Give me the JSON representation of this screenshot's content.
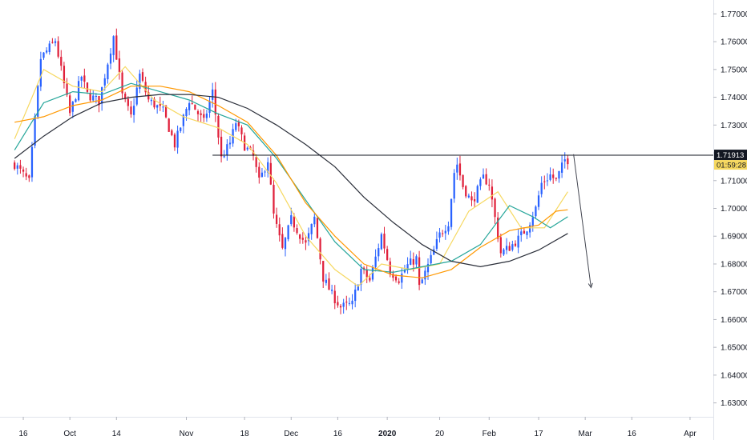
{
  "chart_data": {
    "type": "candlestick",
    "instrument_note": "",
    "y_axis": {
      "ylim": [
        1.625,
        1.775
      ],
      "tick_labels": [
        "1.77000",
        "1.76000",
        "1.75000",
        "1.74000",
        "1.73000",
        "1.72000",
        "1.71000",
        "1.70000",
        "1.69000",
        "1.68000",
        "1.67000",
        "1.66000",
        "1.65000",
        "1.64000",
        "1.63000"
      ],
      "tick_values": [
        1.77,
        1.76,
        1.75,
        1.74,
        1.73,
        1.72,
        1.71,
        1.7,
        1.69,
        1.68,
        1.67,
        1.66,
        1.65,
        1.64,
        1.63
      ]
    },
    "x_axis": {
      "tick_labels": [
        "16",
        "Oct",
        "14",
        "Nov",
        "18",
        "Dec",
        "16",
        "2020",
        "20",
        "Feb",
        "17",
        "Mar",
        "16",
        "Apr"
      ],
      "tick_bold": [
        false,
        false,
        false,
        false,
        false,
        false,
        false,
        true,
        false,
        false,
        false,
        false,
        false,
        false
      ],
      "tick_index": [
        3,
        19,
        35,
        59,
        79,
        95,
        111,
        128,
        146,
        163,
        180,
        196,
        212,
        232
      ],
      "index_range": [
        -5,
        240
      ]
    },
    "price_path": {
      "index": [
        0,
        5,
        9,
        14,
        19,
        23,
        25,
        29,
        34,
        37,
        40,
        43,
        46,
        51,
        55,
        60,
        65,
        68,
        71,
        74,
        76,
        79,
        82,
        84,
        87,
        89,
        92,
        95,
        100,
        103,
        106,
        109,
        112,
        116,
        119,
        122,
        126,
        129,
        132,
        135,
        138,
        139,
        143,
        146,
        149,
        151,
        152,
        154,
        157,
        161,
        163,
        167,
        170,
        173,
        176,
        179,
        181,
        184,
        186,
        189
      ],
      "close": [
        1.716,
        1.7095,
        1.754,
        1.7605,
        1.734,
        1.7475,
        1.741,
        1.7385,
        1.762,
        1.7405,
        1.733,
        1.748,
        1.739,
        1.735,
        1.723,
        1.739,
        1.731,
        1.742,
        1.718,
        1.7235,
        1.731,
        1.7225,
        1.7185,
        1.7095,
        1.7175,
        1.6975,
        1.685,
        1.696,
        1.687,
        1.6965,
        1.675,
        1.669,
        1.6645,
        1.6655,
        1.678,
        1.674,
        1.6905,
        1.6775,
        1.6745,
        1.6795,
        1.682,
        1.6715,
        1.682,
        1.6905,
        1.695,
        1.713,
        1.716,
        1.708,
        1.702,
        1.711,
        1.709,
        1.684,
        1.686,
        1.689,
        1.693,
        1.7,
        1.709,
        1.712,
        1.71,
        1.7175
      ]
    },
    "candles": {
      "count": 191,
      "up_color": "#2962ff",
      "down_color": "#e0213b"
    },
    "moving_averages": [
      {
        "color": "#f6d860",
        "points": [
          [
            0,
            1.725
          ],
          [
            10,
            1.75
          ],
          [
            20,
            1.744
          ],
          [
            30,
            1.742
          ],
          [
            38,
            1.751
          ],
          [
            48,
            1.739
          ],
          [
            58,
            1.733
          ],
          [
            70,
            1.729
          ],
          [
            80,
            1.723
          ],
          [
            90,
            1.709
          ],
          [
            100,
            1.69
          ],
          [
            110,
            1.678
          ],
          [
            118,
            1.672
          ],
          [
            126,
            1.68
          ],
          [
            136,
            1.678
          ],
          [
            146,
            1.68
          ],
          [
            156,
            1.699
          ],
          [
            166,
            1.706
          ],
          [
            174,
            1.693
          ],
          [
            182,
            1.693
          ],
          [
            190,
            1.706
          ]
        ]
      },
      {
        "color": "#26a69a",
        "points": [
          [
            0,
            1.721
          ],
          [
            10,
            1.738
          ],
          [
            20,
            1.742
          ],
          [
            30,
            1.741
          ],
          [
            40,
            1.745
          ],
          [
            50,
            1.742
          ],
          [
            60,
            1.739
          ],
          [
            70,
            1.734
          ],
          [
            80,
            1.73
          ],
          [
            90,
            1.718
          ],
          [
            100,
            1.703
          ],
          [
            110,
            1.688
          ],
          [
            120,
            1.678
          ],
          [
            130,
            1.677
          ],
          [
            140,
            1.679
          ],
          [
            150,
            1.681
          ],
          [
            160,
            1.687
          ],
          [
            170,
            1.701
          ],
          [
            178,
            1.697
          ],
          [
            184,
            1.693
          ],
          [
            190,
            1.697
          ]
        ]
      },
      {
        "color": "#ff9800",
        "points": [
          [
            0,
            1.731
          ],
          [
            10,
            1.733
          ],
          [
            20,
            1.737
          ],
          [
            30,
            1.739
          ],
          [
            40,
            1.744
          ],
          [
            50,
            1.744
          ],
          [
            60,
            1.742
          ],
          [
            70,
            1.737
          ],
          [
            80,
            1.731
          ],
          [
            90,
            1.719
          ],
          [
            100,
            1.702
          ],
          [
            110,
            1.69
          ],
          [
            120,
            1.68
          ],
          [
            130,
            1.676
          ],
          [
            140,
            1.675
          ],
          [
            150,
            1.678
          ],
          [
            160,
            1.686
          ],
          [
            170,
            1.692
          ],
          [
            180,
            1.694
          ],
          [
            186,
            1.699
          ],
          [
            190,
            1.6995
          ]
        ]
      },
      {
        "color": "#2a2e39",
        "points": [
          [
            0,
            1.718
          ],
          [
            10,
            1.726
          ],
          [
            20,
            1.733
          ],
          [
            30,
            1.738
          ],
          [
            40,
            1.74
          ],
          [
            50,
            1.741
          ],
          [
            60,
            1.741
          ],
          [
            70,
            1.74
          ],
          [
            80,
            1.736
          ],
          [
            90,
            1.73
          ],
          [
            100,
            1.723
          ],
          [
            110,
            1.715
          ],
          [
            120,
            1.704
          ],
          [
            130,
            1.695
          ],
          [
            140,
            1.687
          ],
          [
            150,
            1.681
          ],
          [
            160,
            1.679
          ],
          [
            170,
            1.681
          ],
          [
            180,
            1.685
          ],
          [
            190,
            1.691
          ]
        ]
      }
    ],
    "horizontal_line": {
      "value": 1.71913,
      "from_index": 68,
      "to_index": 240,
      "color": "#131722"
    },
    "arrow": {
      "from": [
        192,
        1.7195
      ],
      "to": [
        198,
        1.6715
      ],
      "color": "#434651"
    },
    "price_badge": {
      "price": "1.71913",
      "countdown": "01:59:28",
      "bg": "#131722",
      "countdown_bg": "#f6d860"
    },
    "grid": false,
    "legend": "none"
  }
}
